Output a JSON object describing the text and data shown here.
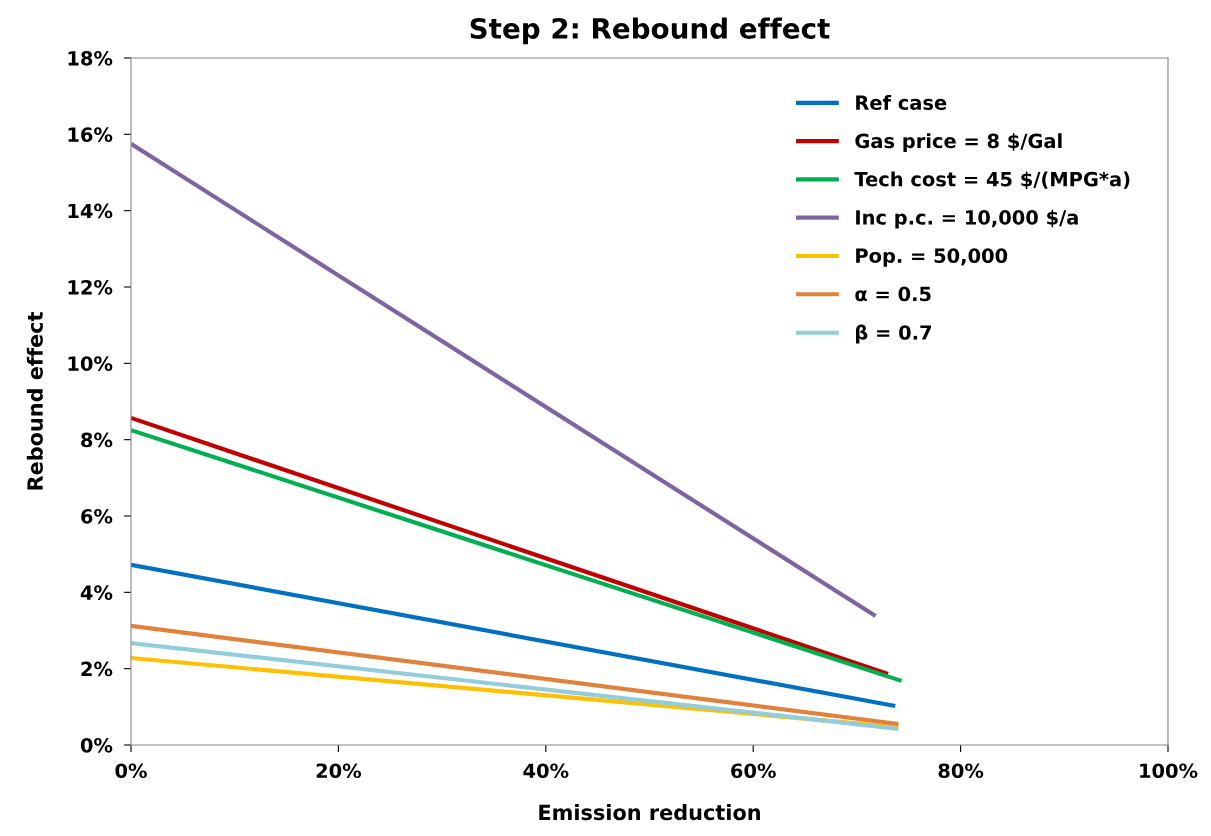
{
  "chart_data": {
    "type": "line",
    "title": "Step 2: Rebound effect",
    "xlabel": "Emission reduction",
    "ylabel": "Rebound effect",
    "xlim": [
      0,
      100
    ],
    "xticks": [
      {
        "value": 0,
        "label": "0%"
      },
      {
        "value": 20,
        "label": "20%"
      },
      {
        "value": 40,
        "label": "40%"
      },
      {
        "value": 60,
        "label": "60%"
      },
      {
        "value": 80,
        "label": "80%"
      },
      {
        "value": 100,
        "label": "100%"
      }
    ],
    "ylim": [
      0,
      18
    ],
    "yticks": [
      {
        "value": 0,
        "label": "0%"
      },
      {
        "value": 2,
        "label": "2%"
      },
      {
        "value": 4,
        "label": "4%"
      },
      {
        "value": 6,
        "label": "6%"
      },
      {
        "value": 8,
        "label": "8%"
      },
      {
        "value": 10,
        "label": "10%"
      },
      {
        "value": 12,
        "label": "12%"
      },
      {
        "value": 14,
        "label": "14%"
      },
      {
        "value": 16,
        "label": "16%"
      },
      {
        "value": 18,
        "label": "18%"
      }
    ],
    "grid": false,
    "legend": "top right",
    "marker": "none",
    "line_style": "solid",
    "series": [
      {
        "name": "Ref case",
        "color": "#0070c0",
        "x": [
          0,
          73.7
        ],
        "values": [
          4.72,
          1.02
        ]
      },
      {
        "name": "Gas price = 8 $/Gal",
        "color": "#c00000",
        "x": [
          0,
          73
        ],
        "values": [
          8.57,
          1.86
        ]
      },
      {
        "name": "Tech cost = 45 $/(MPG*a)",
        "color": "#00b050",
        "x": [
          0,
          74.3
        ],
        "values": [
          8.25,
          1.68
        ]
      },
      {
        "name": "Inc p.c. = 10,000 $/a",
        "color": "#8064a2",
        "x": [
          0,
          71.8
        ],
        "values": [
          15.75,
          3.38
        ]
      },
      {
        "name": "Pop. = 50,000",
        "color": "#ffc000",
        "x": [
          0,
          74
        ],
        "values": [
          2.28,
          0.47
        ]
      },
      {
        "name": "α = 0.5",
        "color": "#e0823c",
        "x": [
          0,
          74
        ],
        "values": [
          3.12,
          0.55
        ]
      },
      {
        "name": "β = 0.7",
        "color": "#92cddc",
        "x": [
          0,
          74
        ],
        "values": [
          2.67,
          0.42
        ]
      }
    ]
  }
}
